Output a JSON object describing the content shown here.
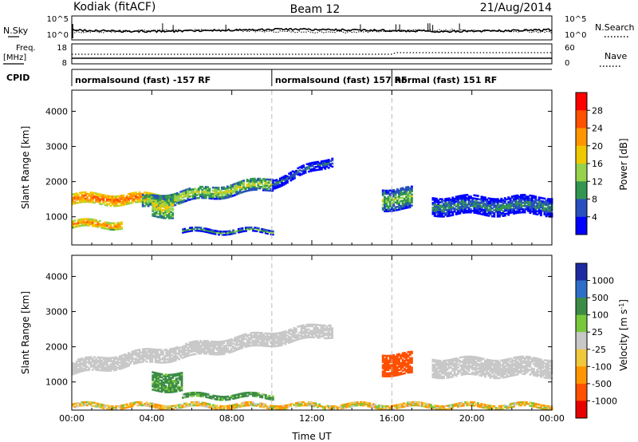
{
  "header": {
    "station": "Kodiak (fitACF)",
    "beam": "Beam 12",
    "date": "21/Aug/2014"
  },
  "noise_panel": {
    "left_label": "N.Sky",
    "right_label": "N.Search",
    "left_ticks": [
      "10^5",
      "10^0"
    ],
    "right_ticks": [
      "10^5",
      "10^0"
    ]
  },
  "freq_panel": {
    "left_label_1": "Freq.",
    "left_label_2": "[MHz]",
    "left_ticks": [
      "18",
      "8"
    ],
    "right_label": "Nave",
    "right_ticks": [
      "60",
      "0"
    ]
  },
  "cpid": {
    "label": "CPID",
    "segments": [
      {
        "start_hour": 0,
        "text": "normalsound (fast) -157 RF"
      },
      {
        "start_hour": 10,
        "text": "normalsound (fast) 157 RF"
      },
      {
        "start_hour": 16,
        "text": "normal (fast) 151 RF"
      }
    ]
  },
  "axes": {
    "y_label": "Slant Range [km]",
    "y_ticks": [
      1000,
      2000,
      3000,
      4000
    ],
    "ylim": [
      200,
      4600
    ],
    "xlim": [
      0,
      24
    ],
    "x_ticks": [
      "00:00",
      "04:00",
      "08:00",
      "12:00",
      "16:00",
      "20:00",
      "00:00"
    ],
    "x_label": "Time UT",
    "mode_boundaries": [
      10,
      16
    ]
  },
  "power_colorbar": {
    "label": "Power [dB]",
    "ticks": [
      "28",
      "24",
      "20",
      "16",
      "12",
      "8",
      "4"
    ],
    "colors": [
      "#ff0000",
      "#ff5000",
      "#ff9600",
      "#f0c800",
      "#96d24b",
      "#329650",
      "#2850be",
      "#0000ff"
    ]
  },
  "velocity_colorbar": {
    "label": "Velocity [m s^-1]",
    "ticks": [
      "1000",
      "500",
      "100",
      "25",
      "-25",
      "-100",
      "-500",
      "-1000"
    ],
    "colors": [
      "#1e2ba0",
      "#2d6ec8",
      "#3c8c46",
      "#78c83c",
      "#c8c8c8",
      "#f0c83c",
      "#ff9600",
      "#ff5000",
      "#e60000"
    ]
  },
  "chart_data": {
    "type": "heatmap",
    "title": "Kodiak (fitACF) Beam 12 21/Aug/2014",
    "xlabel": "Time UT",
    "ylabel": "Slant Range [km]",
    "x_units": "hours UT",
    "xlim": [
      0,
      24
    ],
    "ylim": [
      200,
      4600
    ],
    "power_features": [
      {
        "t0": 0.0,
        "t1": 4.5,
        "r_center": 1500,
        "r_width": 300,
        "power_db": 26
      },
      {
        "t0": 3.5,
        "t1": 10.0,
        "r_center_start": 1400,
        "r_center_end": 1950,
        "r_width": 350,
        "power_db": 16
      },
      {
        "t0": 10.0,
        "t1": 13.0,
        "r_center_start": 1950,
        "r_center_end": 2600,
        "r_width": 250,
        "power_db": 8
      },
      {
        "t0": 0.0,
        "t1": 2.5,
        "r_center": 780,
        "r_width": 200,
        "power_db": 24
      },
      {
        "t0": 4.0,
        "t1": 5.0,
        "r_center": 1300,
        "r_width": 600,
        "power_db": 18
      },
      {
        "t0": 5.5,
        "t1": 10.0,
        "r_center": 580,
        "r_width": 100,
        "power_db": 12
      },
      {
        "t0": 18.0,
        "t1": 24.0,
        "r_center": 1300,
        "r_width": 500,
        "power_db": 10
      },
      {
        "t0": 15.5,
        "t1": 17.0,
        "r_center": 1500,
        "r_width": 600,
        "power_db": 14
      }
    ],
    "velocity_features": [
      {
        "t0": 0.0,
        "t1": 13.0,
        "r_center_start": 1400,
        "r_center_end": 2500,
        "r_width": 400,
        "velocity": 0
      },
      {
        "t0": 4.0,
        "t1": 5.5,
        "r_center": 1000,
        "r_width": 500,
        "velocity": 200
      },
      {
        "t0": 5.5,
        "t1": 10.0,
        "r_center": 580,
        "r_width": 100,
        "velocity": 150
      },
      {
        "t0": 15.5,
        "t1": 17.0,
        "r_center": 1500,
        "r_width": 600,
        "velocity": -800
      },
      {
        "t0": 18.0,
        "t1": 24.0,
        "r_center": 1400,
        "r_width": 500,
        "velocity": 0
      },
      {
        "t0": 0.0,
        "t1": 24.0,
        "r_center": 320,
        "r_width": 120,
        "velocity": -60
      }
    ]
  }
}
